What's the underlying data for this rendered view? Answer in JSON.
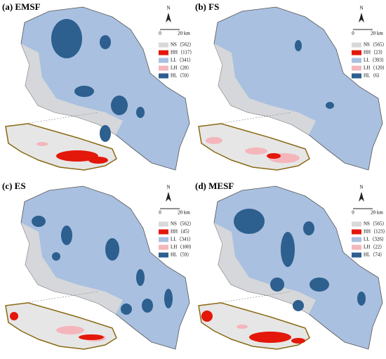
{
  "panels": [
    {
      "title": "(a) EMSF",
      "north": "N",
      "scale_start": "0",
      "scale_end": "20 km",
      "legend": [
        "NS（562）",
        "HH（117）",
        "LL（341）",
        "LH（28）",
        "HL（59）"
      ]
    },
    {
      "title": "(b) FS",
      "north": "N",
      "scale_start": "0",
      "scale_end": "20 km",
      "legend": [
        "NS（565）",
        "HH（23）",
        "LL（393）",
        "LH（120）",
        "HL（6）"
      ]
    },
    {
      "title": "(c) ES",
      "north": "N",
      "scale_start": "0",
      "scale_end": "20 km",
      "legend": [
        "NS（562）",
        "HH（45）",
        "LL（341）",
        "LH（100）",
        "HL（59）"
      ]
    },
    {
      "title": "(d) MESF",
      "north": "N",
      "scale_start": "0",
      "scale_end": "20 km",
      "legend": [
        "NS（565）",
        "HH（123）",
        "LL（326）",
        "LH（22）",
        "HL（74）"
      ]
    }
  ]
}
